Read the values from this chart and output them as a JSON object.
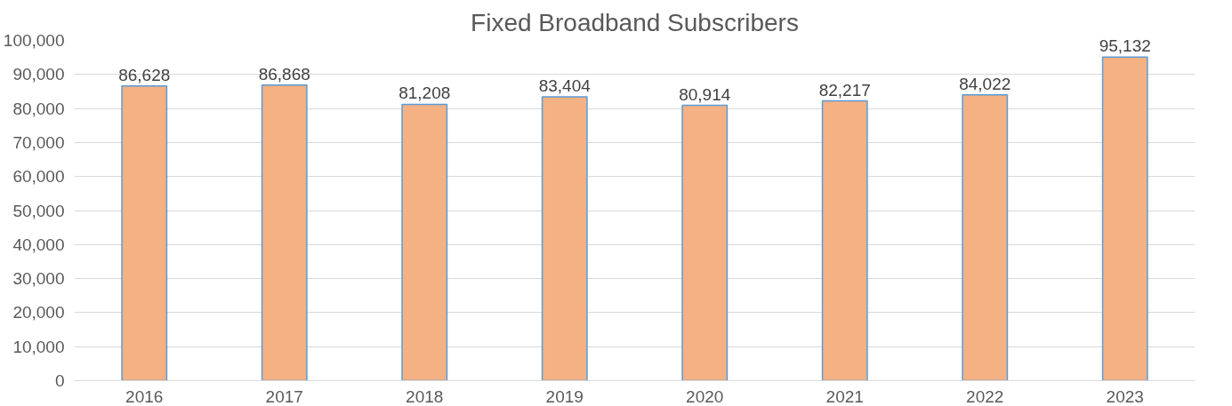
{
  "chart_data": {
    "type": "bar",
    "title": "Fixed Broadband Subscribers",
    "categories": [
      "2016",
      "2017",
      "2018",
      "2019",
      "2020",
      "2021",
      "2022",
      "2023"
    ],
    "values": [
      86628,
      86868,
      81208,
      83404,
      80914,
      82217,
      84022,
      95132
    ],
    "color": "#f4b183",
    "ylim": [
      0,
      100000
    ],
    "yticks": [
      0,
      {
        "value": 10000,
        "label": "10,000"
      },
      {
        "value": 20000,
        "label": "20,000"
      },
      {
        "value": 30000,
        "label": "30,000"
      },
      {
        "value": 40000,
        "label": "40,000"
      },
      {
        "value": 50000,
        "label": "50,000"
      },
      {
        "value": 60000,
        "label": "60,000"
      },
      {
        "value": 70000,
        "label": "70,000"
      },
      {
        "value": 80000,
        "label": "80,000"
      },
      {
        "value": 90000,
        "label": "90,000"
      },
      {
        "value": 100000,
        "label": "100,000"
      }
    ],
    "value_labels": [
      "86,628",
      "86,868",
      "81,208",
      "83,404",
      "80,914",
      "82,217",
      "84,022",
      "95,132"
    ],
    "grid": "y",
    "data_labels": true
  }
}
